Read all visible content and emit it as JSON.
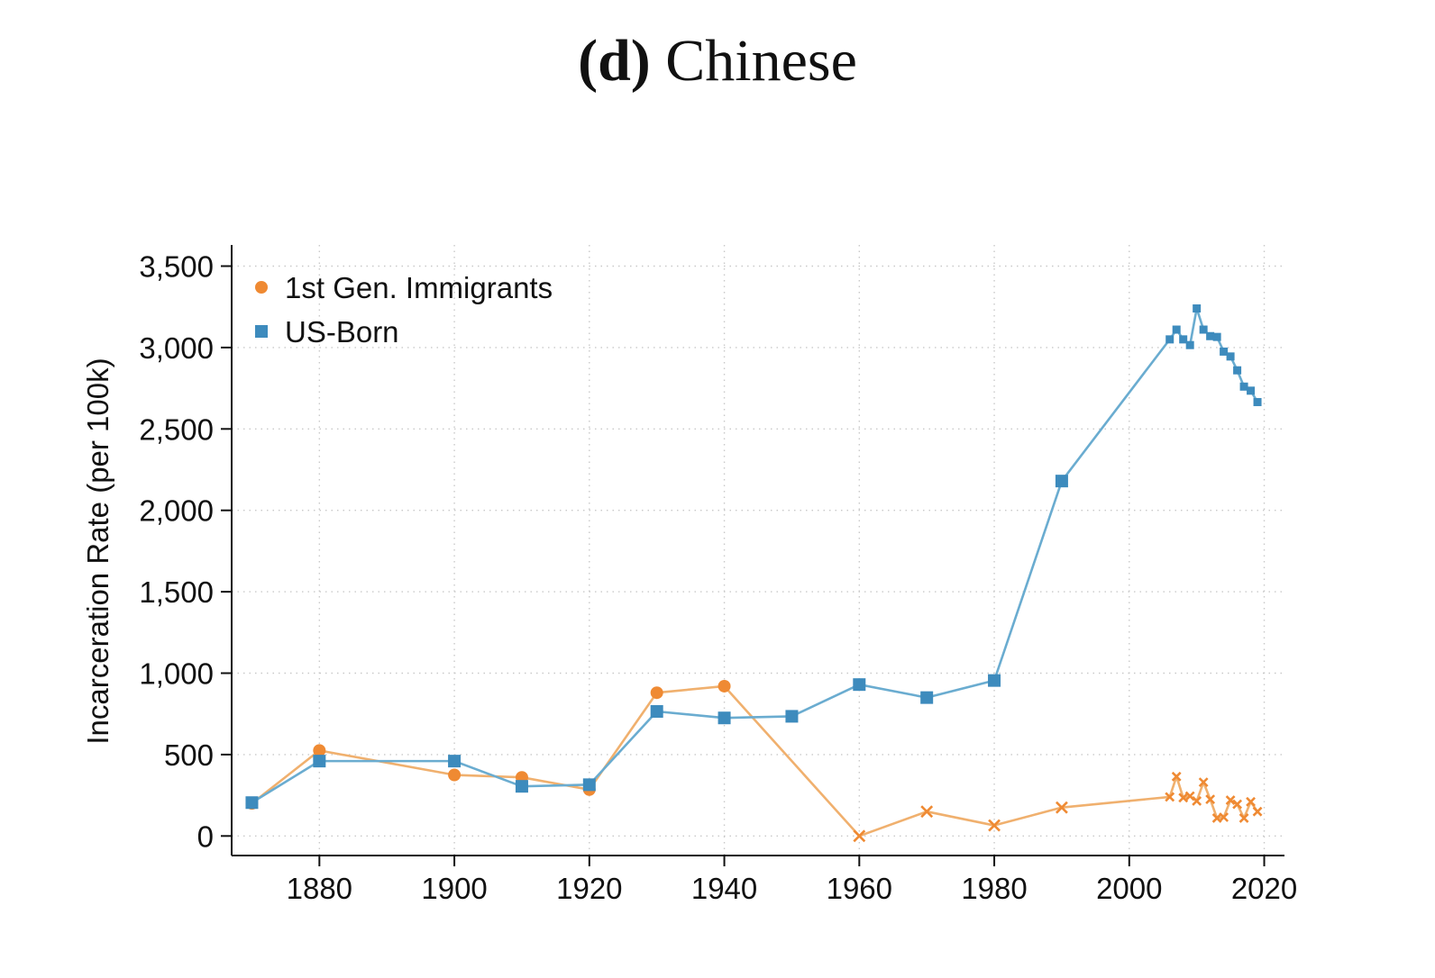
{
  "chart_data": {
    "type": "line",
    "title_prefix": "(d)",
    "title_main": "Chinese",
    "xlabel": "",
    "ylabel": "Incarceration Rate (per 100k)",
    "xlim": [
      1867,
      2023
    ],
    "ylim": [
      -120,
      3630
    ],
    "x_ticks": [
      1880,
      1900,
      1920,
      1940,
      1960,
      1980,
      2000,
      2020
    ],
    "x_tick_labels": [
      "1880",
      "1900",
      "1920",
      "1940",
      "1960",
      "1980",
      "2000",
      "2020"
    ],
    "y_ticks": [
      0,
      500,
      1000,
      1500,
      2000,
      2500,
      3000,
      3500
    ],
    "y_tick_labels": [
      "0",
      "500",
      "1,000",
      "1,500",
      "2,000",
      "2,500",
      "3,000",
      "3,500"
    ],
    "grid": true,
    "legend_position": "top-left",
    "series": [
      {
        "name": "1st Gen. Immigrants",
        "color": "#ef8a33",
        "line_color": "#f0b06e",
        "marker": "circle",
        "marker_late": "x",
        "x": [
          1870,
          1880,
          1900,
          1910,
          1920,
          1930,
          1940,
          1960,
          1970,
          1980,
          1990,
          2006,
          2007,
          2008,
          2009,
          2010,
          2011,
          2012,
          2013,
          2014,
          2015,
          2016,
          2017,
          2018,
          2019
        ],
        "values": [
          200,
          525,
          375,
          360,
          285,
          880,
          920,
          0,
          150,
          65,
          175,
          240,
          365,
          235,
          245,
          215,
          330,
          225,
          110,
          115,
          220,
          195,
          110,
          210,
          150
        ]
      },
      {
        "name": "US-Born",
        "color": "#3d8bbd",
        "line_color": "#6aacd0",
        "marker": "square",
        "x": [
          1870,
          1880,
          1900,
          1910,
          1920,
          1930,
          1940,
          1950,
          1960,
          1970,
          1980,
          1990,
          2006,
          2007,
          2008,
          2009,
          2010,
          2011,
          2012,
          2013,
          2014,
          2015,
          2016,
          2017,
          2018,
          2019
        ],
        "values": [
          205,
          460,
          460,
          305,
          315,
          765,
          725,
          735,
          930,
          850,
          955,
          2180,
          3050,
          3110,
          3050,
          3015,
          3240,
          3110,
          3070,
          3065,
          2975,
          2945,
          2860,
          2760,
          2735,
          2665
        ]
      }
    ]
  }
}
